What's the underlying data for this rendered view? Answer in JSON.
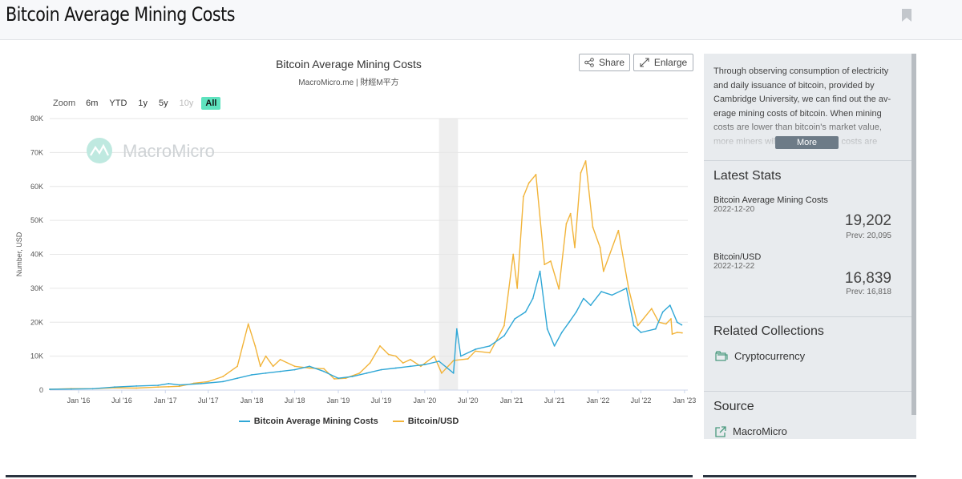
{
  "page": {
    "title": "Bitcoin Average Mining Costs",
    "bookmark_icon": "bookmark-icon"
  },
  "chart_header": {
    "title": "Bitcoin Average Mining Costs",
    "subtitle": "MacroMicro.me | 財經M平方",
    "share_label": "Share",
    "enlarge_label": "Enlarge",
    "watermark": "MacroMicro"
  },
  "zoom": {
    "label": "Zoom",
    "options": [
      "6m",
      "YTD",
      "1y",
      "5y",
      "10y",
      "All"
    ],
    "disabled": "10y",
    "active": "All"
  },
  "sidebar": {
    "description": "Through observing consumption of electricity and daily issuance of bitcoin, provided by Cambridge University, we can find out the av-erage mining costs of bitcoin. When mining costs are lower than bitcoin's market value, more miners will join and mining costs are",
    "more_label": "More",
    "latest_stats_title": "Latest Stats",
    "stats": [
      {
        "name": "Bitcoin Average Mining Costs",
        "date": "2022-12-20",
        "value": "19,202",
        "prev": "Prev: 20,095"
      },
      {
        "name": "Bitcoin/USD",
        "date": "2022-12-22",
        "value": "16,839",
        "prev": "Prev: 16,818"
      }
    ],
    "related_title": "Related Collections",
    "related_item": "Cryptocurrency",
    "source_title": "Source",
    "source_item": "MacroMicro"
  },
  "colors": {
    "mining_cost": "#2fa7d6",
    "bitcoin_usd": "#f2b43a",
    "zoom_active": "#5ee3bf",
    "shaded_band": "#eeeeee"
  },
  "chart_data": {
    "type": "line",
    "title": "Bitcoin Average Mining Costs",
    "subtitle": "MacroMicro.me | 財經M平方",
    "ylabel": "Number, USD",
    "ylim": [
      0,
      80000
    ],
    "y_ticks": [
      0,
      10000,
      20000,
      30000,
      40000,
      50000,
      60000,
      70000,
      80000
    ],
    "y_tick_labels": [
      "0",
      "10K",
      "20K",
      "30K",
      "40K",
      "50K",
      "60K",
      "70K",
      "80K"
    ],
    "x_range": [
      "2015-09-01",
      "2023-01-15"
    ],
    "x_ticks": [
      "2016-01-01",
      "2016-07-01",
      "2017-01-01",
      "2017-07-01",
      "2018-01-01",
      "2018-07-01",
      "2019-01-01",
      "2019-07-01",
      "2020-01-01",
      "2020-07-01",
      "2021-01-01",
      "2021-07-01",
      "2022-01-01",
      "2022-07-01",
      "2023-01-01"
    ],
    "x_tick_labels": [
      "Jan '16",
      "Jul '16",
      "Jan '17",
      "Jul '17",
      "Jan '18",
      "Jul '18",
      "Jan '19",
      "Jul '19",
      "Jan '20",
      "Jul '20",
      "Jan '21",
      "Jul '21",
      "Jan '22",
      "Jul '22",
      "Jan '23"
    ],
    "shaded_band": [
      "2020-03-01",
      "2020-05-20"
    ],
    "grid": true,
    "legend_position": "bottom",
    "series": [
      {
        "name": "Bitcoin Average Mining Costs",
        "color": "#2fa7d6",
        "points": [
          [
            "2015-09-01",
            230
          ],
          [
            "2015-12-01",
            300
          ],
          [
            "2016-03-01",
            400
          ],
          [
            "2016-06-01",
            900
          ],
          [
            "2016-09-01",
            1200
          ],
          [
            "2016-12-01",
            1400
          ],
          [
            "2017-01-15",
            1900
          ],
          [
            "2017-03-01",
            1500
          ],
          [
            "2017-06-01",
            1900
          ],
          [
            "2017-09-01",
            2500
          ],
          [
            "2017-11-01",
            3500
          ],
          [
            "2018-01-01",
            4500
          ],
          [
            "2018-03-01",
            5000
          ],
          [
            "2018-05-01",
            5500
          ],
          [
            "2018-07-01",
            6000
          ],
          [
            "2018-09-01",
            7000
          ],
          [
            "2018-11-01",
            5500
          ],
          [
            "2019-01-01",
            3500
          ],
          [
            "2019-03-01",
            4000
          ],
          [
            "2019-05-01",
            5000
          ],
          [
            "2019-07-01",
            6000
          ],
          [
            "2019-09-01",
            6500
          ],
          [
            "2019-11-01",
            7000
          ],
          [
            "2020-01-01",
            7500
          ],
          [
            "2020-03-01",
            8500
          ],
          [
            "2020-05-01",
            5000
          ],
          [
            "2020-05-15",
            18000
          ],
          [
            "2020-06-01",
            10000
          ],
          [
            "2020-08-01",
            12000
          ],
          [
            "2020-10-01",
            13000
          ],
          [
            "2020-12-01",
            16000
          ],
          [
            "2021-01-15",
            21000
          ],
          [
            "2021-03-01",
            23000
          ],
          [
            "2021-04-01",
            27000
          ],
          [
            "2021-05-01",
            35000
          ],
          [
            "2021-06-01",
            18000
          ],
          [
            "2021-07-01",
            13000
          ],
          [
            "2021-08-01",
            17000
          ],
          [
            "2021-09-01",
            20000
          ],
          [
            "2021-10-01",
            23000
          ],
          [
            "2021-11-01",
            27000
          ],
          [
            "2021-12-01",
            25000
          ],
          [
            "2022-01-15",
            29000
          ],
          [
            "2022-03-01",
            28000
          ],
          [
            "2022-05-01",
            30000
          ],
          [
            "2022-06-01",
            19000
          ],
          [
            "2022-07-01",
            17000
          ],
          [
            "2022-09-01",
            18000
          ],
          [
            "2022-10-01",
            23000
          ],
          [
            "2022-11-01",
            25000
          ],
          [
            "2022-12-01",
            20000
          ],
          [
            "2022-12-20",
            19202
          ]
        ]
      },
      {
        "name": "Bitcoin/USD",
        "color": "#f2b43a",
        "points": [
          [
            "2015-09-01",
            240
          ],
          [
            "2015-12-01",
            420
          ],
          [
            "2016-03-01",
            410
          ],
          [
            "2016-06-01",
            650
          ],
          [
            "2016-09-01",
            600
          ],
          [
            "2016-12-01",
            900
          ],
          [
            "2017-01-15",
            1000
          ],
          [
            "2017-03-01",
            1100
          ],
          [
            "2017-05-01",
            2000
          ],
          [
            "2017-07-01",
            2500
          ],
          [
            "2017-09-01",
            4000
          ],
          [
            "2017-11-01",
            7000
          ],
          [
            "2017-12-17",
            19500
          ],
          [
            "2018-01-15",
            13000
          ],
          [
            "2018-02-06",
            7000
          ],
          [
            "2018-03-01",
            10000
          ],
          [
            "2018-04-01",
            7000
          ],
          [
            "2018-05-01",
            9000
          ],
          [
            "2018-07-01",
            7000
          ],
          [
            "2018-09-01",
            6500
          ],
          [
            "2018-11-01",
            6300
          ],
          [
            "2018-12-15",
            3300
          ],
          [
            "2019-02-01",
            3500
          ],
          [
            "2019-04-01",
            5000
          ],
          [
            "2019-05-15",
            8000
          ],
          [
            "2019-06-26",
            13000
          ],
          [
            "2019-08-01",
            10500
          ],
          [
            "2019-09-01",
            10000
          ],
          [
            "2019-10-01",
            8000
          ],
          [
            "2019-11-01",
            9000
          ],
          [
            "2019-12-15",
            7000
          ],
          [
            "2020-02-10",
            10000
          ],
          [
            "2020-03-12",
            5000
          ],
          [
            "2020-05-01",
            8700
          ],
          [
            "2020-07-01",
            9200
          ],
          [
            "2020-08-01",
            11500
          ],
          [
            "2020-10-01",
            11000
          ],
          [
            "2020-11-01",
            15000
          ],
          [
            "2020-12-01",
            19000
          ],
          [
            "2021-01-08",
            40000
          ],
          [
            "2021-01-25",
            30000
          ],
          [
            "2021-02-20",
            57000
          ],
          [
            "2021-03-15",
            61000
          ],
          [
            "2021-04-14",
            63500
          ],
          [
            "2021-05-20",
            37000
          ],
          [
            "2021-06-15",
            38000
          ],
          [
            "2021-07-20",
            29800
          ],
          [
            "2021-08-20",
            49000
          ],
          [
            "2021-09-07",
            52000
          ],
          [
            "2021-09-25",
            42000
          ],
          [
            "2021-10-20",
            64000
          ],
          [
            "2021-11-10",
            67500
          ],
          [
            "2021-12-10",
            48000
          ],
          [
            "2022-01-10",
            42000
          ],
          [
            "2022-01-24",
            35000
          ],
          [
            "2022-03-28",
            47000
          ],
          [
            "2022-05-10",
            30000
          ],
          [
            "2022-06-18",
            19000
          ],
          [
            "2022-08-15",
            24000
          ],
          [
            "2022-09-15",
            20000
          ],
          [
            "2022-10-15",
            19500
          ],
          [
            "2022-11-05",
            21000
          ],
          [
            "2022-11-10",
            16500
          ],
          [
            "2022-12-01",
            17000
          ],
          [
            "2022-12-22",
            16839
          ]
        ]
      }
    ]
  }
}
